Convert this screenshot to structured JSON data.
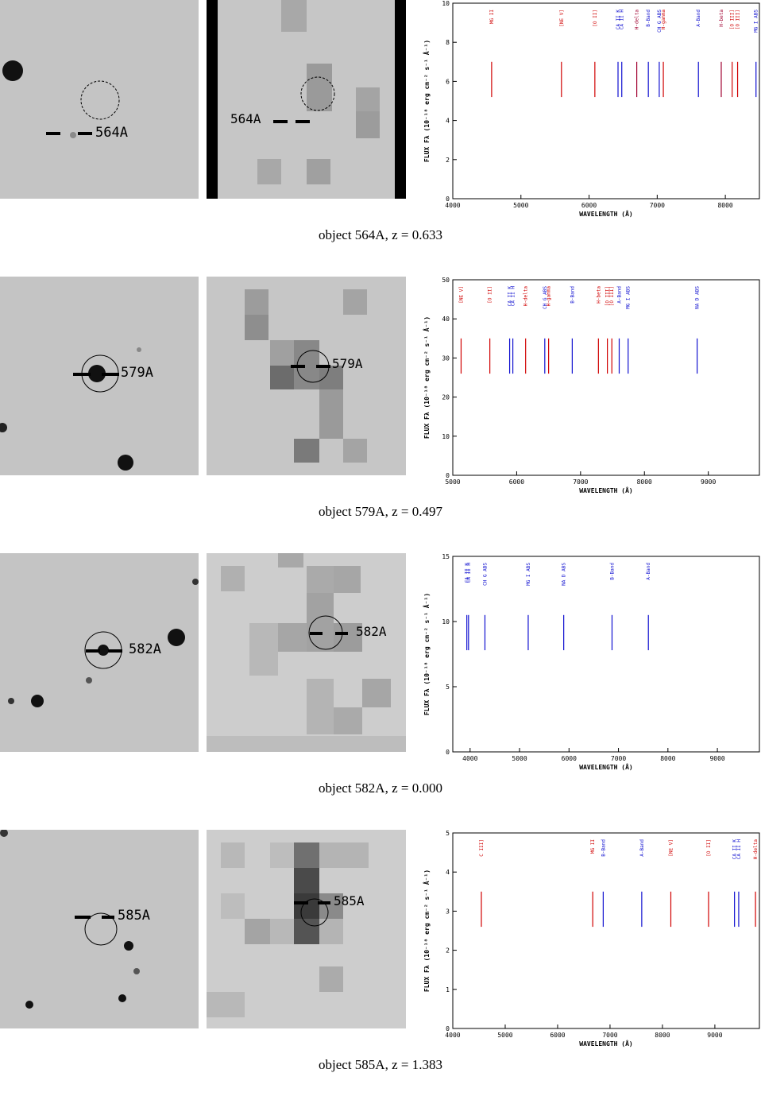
{
  "figure": {
    "panels": [
      {
        "object": "564A",
        "caption_prefix": "object 564A, z = ",
        "redshift": "0.633",
        "label": "564A",
        "spectrum": {
          "ylabel": "FLUX Fλ (10⁻¹⁸ erg cm⁻² s⁻¹ Å⁻¹)",
          "xlabel": "WAVELENGTH (Å)",
          "xlim": [
            4000,
            8500
          ],
          "ylim": [
            0,
            10
          ],
          "xticks": [
            "4000",
            "5000",
            "6000",
            "7000",
            "8000"
          ],
          "yticks": [
            "0",
            "2",
            "4",
            "6",
            "8",
            "10"
          ],
          "lines": [
            {
              "label": "MG II",
              "wavelength": 4570,
              "color": "#d00000"
            },
            {
              "label": "[NE V]",
              "wavelength": 5595,
              "color": "#d00000"
            },
            {
              "label": "[O II]",
              "wavelength": 6085,
              "color": "#d00000"
            },
            {
              "label": "CA II K",
              "wavelength": 6425,
              "color": "#1010d0"
            },
            {
              "label": "CA II H",
              "wavelength": 6480,
              "color": "#1010d0"
            },
            {
              "label": "H-delta",
              "wavelength": 6700,
              "color": "#a00030"
            },
            {
              "label": "B-Band",
              "wavelength": 6870,
              "color": "#1010d0"
            },
            {
              "label": "CH G ABS",
              "wavelength": 7030,
              "color": "#1010d0"
            },
            {
              "label": "H-gamma",
              "wavelength": 7090,
              "color": "#d00000"
            },
            {
              "label": "A-Band",
              "wavelength": 7605,
              "color": "#1010d0"
            },
            {
              "label": "H-beta",
              "wavelength": 7940,
              "color": "#a00030"
            },
            {
              "label": "[O III]",
              "wavelength": 8100,
              "color": "#d00000"
            },
            {
              "label": "[O III]",
              "wavelength": 8180,
              "color": "#d00000"
            },
            {
              "label": "MG I ABS",
              "wavelength": 8450,
              "color": "#1010d0"
            }
          ]
        }
      },
      {
        "object": "579A",
        "caption_prefix": "object 579A, z = ",
        "redshift": "0.497",
        "label": "579A",
        "spectrum": {
          "ylabel": "FLUX Fλ (10⁻¹⁸ erg cm⁻² s⁻¹ Å⁻¹)",
          "xlabel": "WAVELENGTH (Å)",
          "xlim": [
            5000,
            9800
          ],
          "ylim": [
            0,
            50
          ],
          "xticks": [
            "5000",
            "6000",
            "7000",
            "8000",
            "9000"
          ],
          "yticks": [
            "0",
            "10",
            "20",
            "30",
            "40",
            "50"
          ],
          "lines": [
            {
              "label": "[NE V]",
              "wavelength": 5130,
              "color": "#d00000"
            },
            {
              "label": "[O II]",
              "wavelength": 5580,
              "color": "#d00000"
            },
            {
              "label": "CA II K",
              "wavelength": 5890,
              "color": "#1010d0"
            },
            {
              "label": "CA II H",
              "wavelength": 5940,
              "color": "#1010d0"
            },
            {
              "label": "H-delta",
              "wavelength": 6140,
              "color": "#d00000"
            },
            {
              "label": "CH G ABS",
              "wavelength": 6440,
              "color": "#1010d0"
            },
            {
              "label": "H-gamma",
              "wavelength": 6500,
              "color": "#d00000"
            },
            {
              "label": "B-Band",
              "wavelength": 6870,
              "color": "#1010d0"
            },
            {
              "label": "H-beta",
              "wavelength": 7280,
              "color": "#d00000"
            },
            {
              "label": "[O III]",
              "wavelength": 7420,
              "color": "#d00000"
            },
            {
              "label": "[O III]",
              "wavelength": 7490,
              "color": "#d00000"
            },
            {
              "label": "A-Band",
              "wavelength": 7605,
              "color": "#1010d0"
            },
            {
              "label": "MG I ABS",
              "wavelength": 7745,
              "color": "#1010d0"
            },
            {
              "label": "NA D ABS",
              "wavelength": 8825,
              "color": "#1010d0"
            }
          ]
        }
      },
      {
        "object": "582A",
        "caption_prefix": "object 582A, z = ",
        "redshift": "0.000",
        "label": "582A",
        "spectrum": {
          "ylabel": "FLUX Fλ (10⁻¹⁸ erg cm⁻² s⁻¹ Å⁻¹)",
          "xlabel": "WAVELENGTH (Å)",
          "xlim": [
            3650,
            9850
          ],
          "ylim": [
            0,
            15
          ],
          "xticks": [
            "4000",
            "5000",
            "6000",
            "7000",
            "8000",
            "9000"
          ],
          "yticks": [
            "0",
            "5",
            "10",
            "15"
          ],
          "lines": [
            {
              "label": "CA II K",
              "wavelength": 3934,
              "color": "#1010d0"
            },
            {
              "label": "CA II H",
              "wavelength": 3968,
              "color": "#1010d0"
            },
            {
              "label": "CH G ABS",
              "wavelength": 4300,
              "color": "#1010d0"
            },
            {
              "label": "MG I ABS",
              "wavelength": 5175,
              "color": "#1010d0"
            },
            {
              "label": "NA D ABS",
              "wavelength": 5893,
              "color": "#1010d0"
            },
            {
              "label": "B-Band",
              "wavelength": 6870,
              "color": "#1010d0"
            },
            {
              "label": "A-Band",
              "wavelength": 7605,
              "color": "#1010d0"
            }
          ]
        }
      },
      {
        "object": "585A",
        "caption_prefix": "object 585A, z = ",
        "redshift": "1.383",
        "label": "585A",
        "spectrum": {
          "ylabel": "FLUX Fλ (10⁻¹⁸ erg cm⁻² s⁻¹ Å⁻¹)",
          "xlabel": "WAVELENGTH (Å)",
          "xlim": [
            4000,
            9850
          ],
          "ylim": [
            0,
            5
          ],
          "xticks": [
            "4000",
            "5000",
            "6000",
            "7000",
            "8000",
            "9000"
          ],
          "yticks": [
            "0",
            "1",
            "2",
            "3",
            "4",
            "5"
          ],
          "lines": [
            {
              "label": "C III]",
              "wavelength": 4545,
              "color": "#d00000"
            },
            {
              "label": "MG II",
              "wavelength": 6670,
              "color": "#d00000"
            },
            {
              "label": "B-Band",
              "wavelength": 6870,
              "color": "#1010d0"
            },
            {
              "label": "A-Band",
              "wavelength": 7605,
              "color": "#1010d0"
            },
            {
              "label": "[NE V]",
              "wavelength": 8160,
              "color": "#d00000"
            },
            {
              "label": "[O II]",
              "wavelength": 8880,
              "color": "#d00000"
            },
            {
              "label": "CA II K",
              "wavelength": 9375,
              "color": "#1010d0"
            },
            {
              "label": "CA II H",
              "wavelength": 9455,
              "color": "#1010d0"
            },
            {
              "label": "H-delta",
              "wavelength": 9775,
              "color": "#d00000"
            }
          ]
        }
      }
    ]
  }
}
